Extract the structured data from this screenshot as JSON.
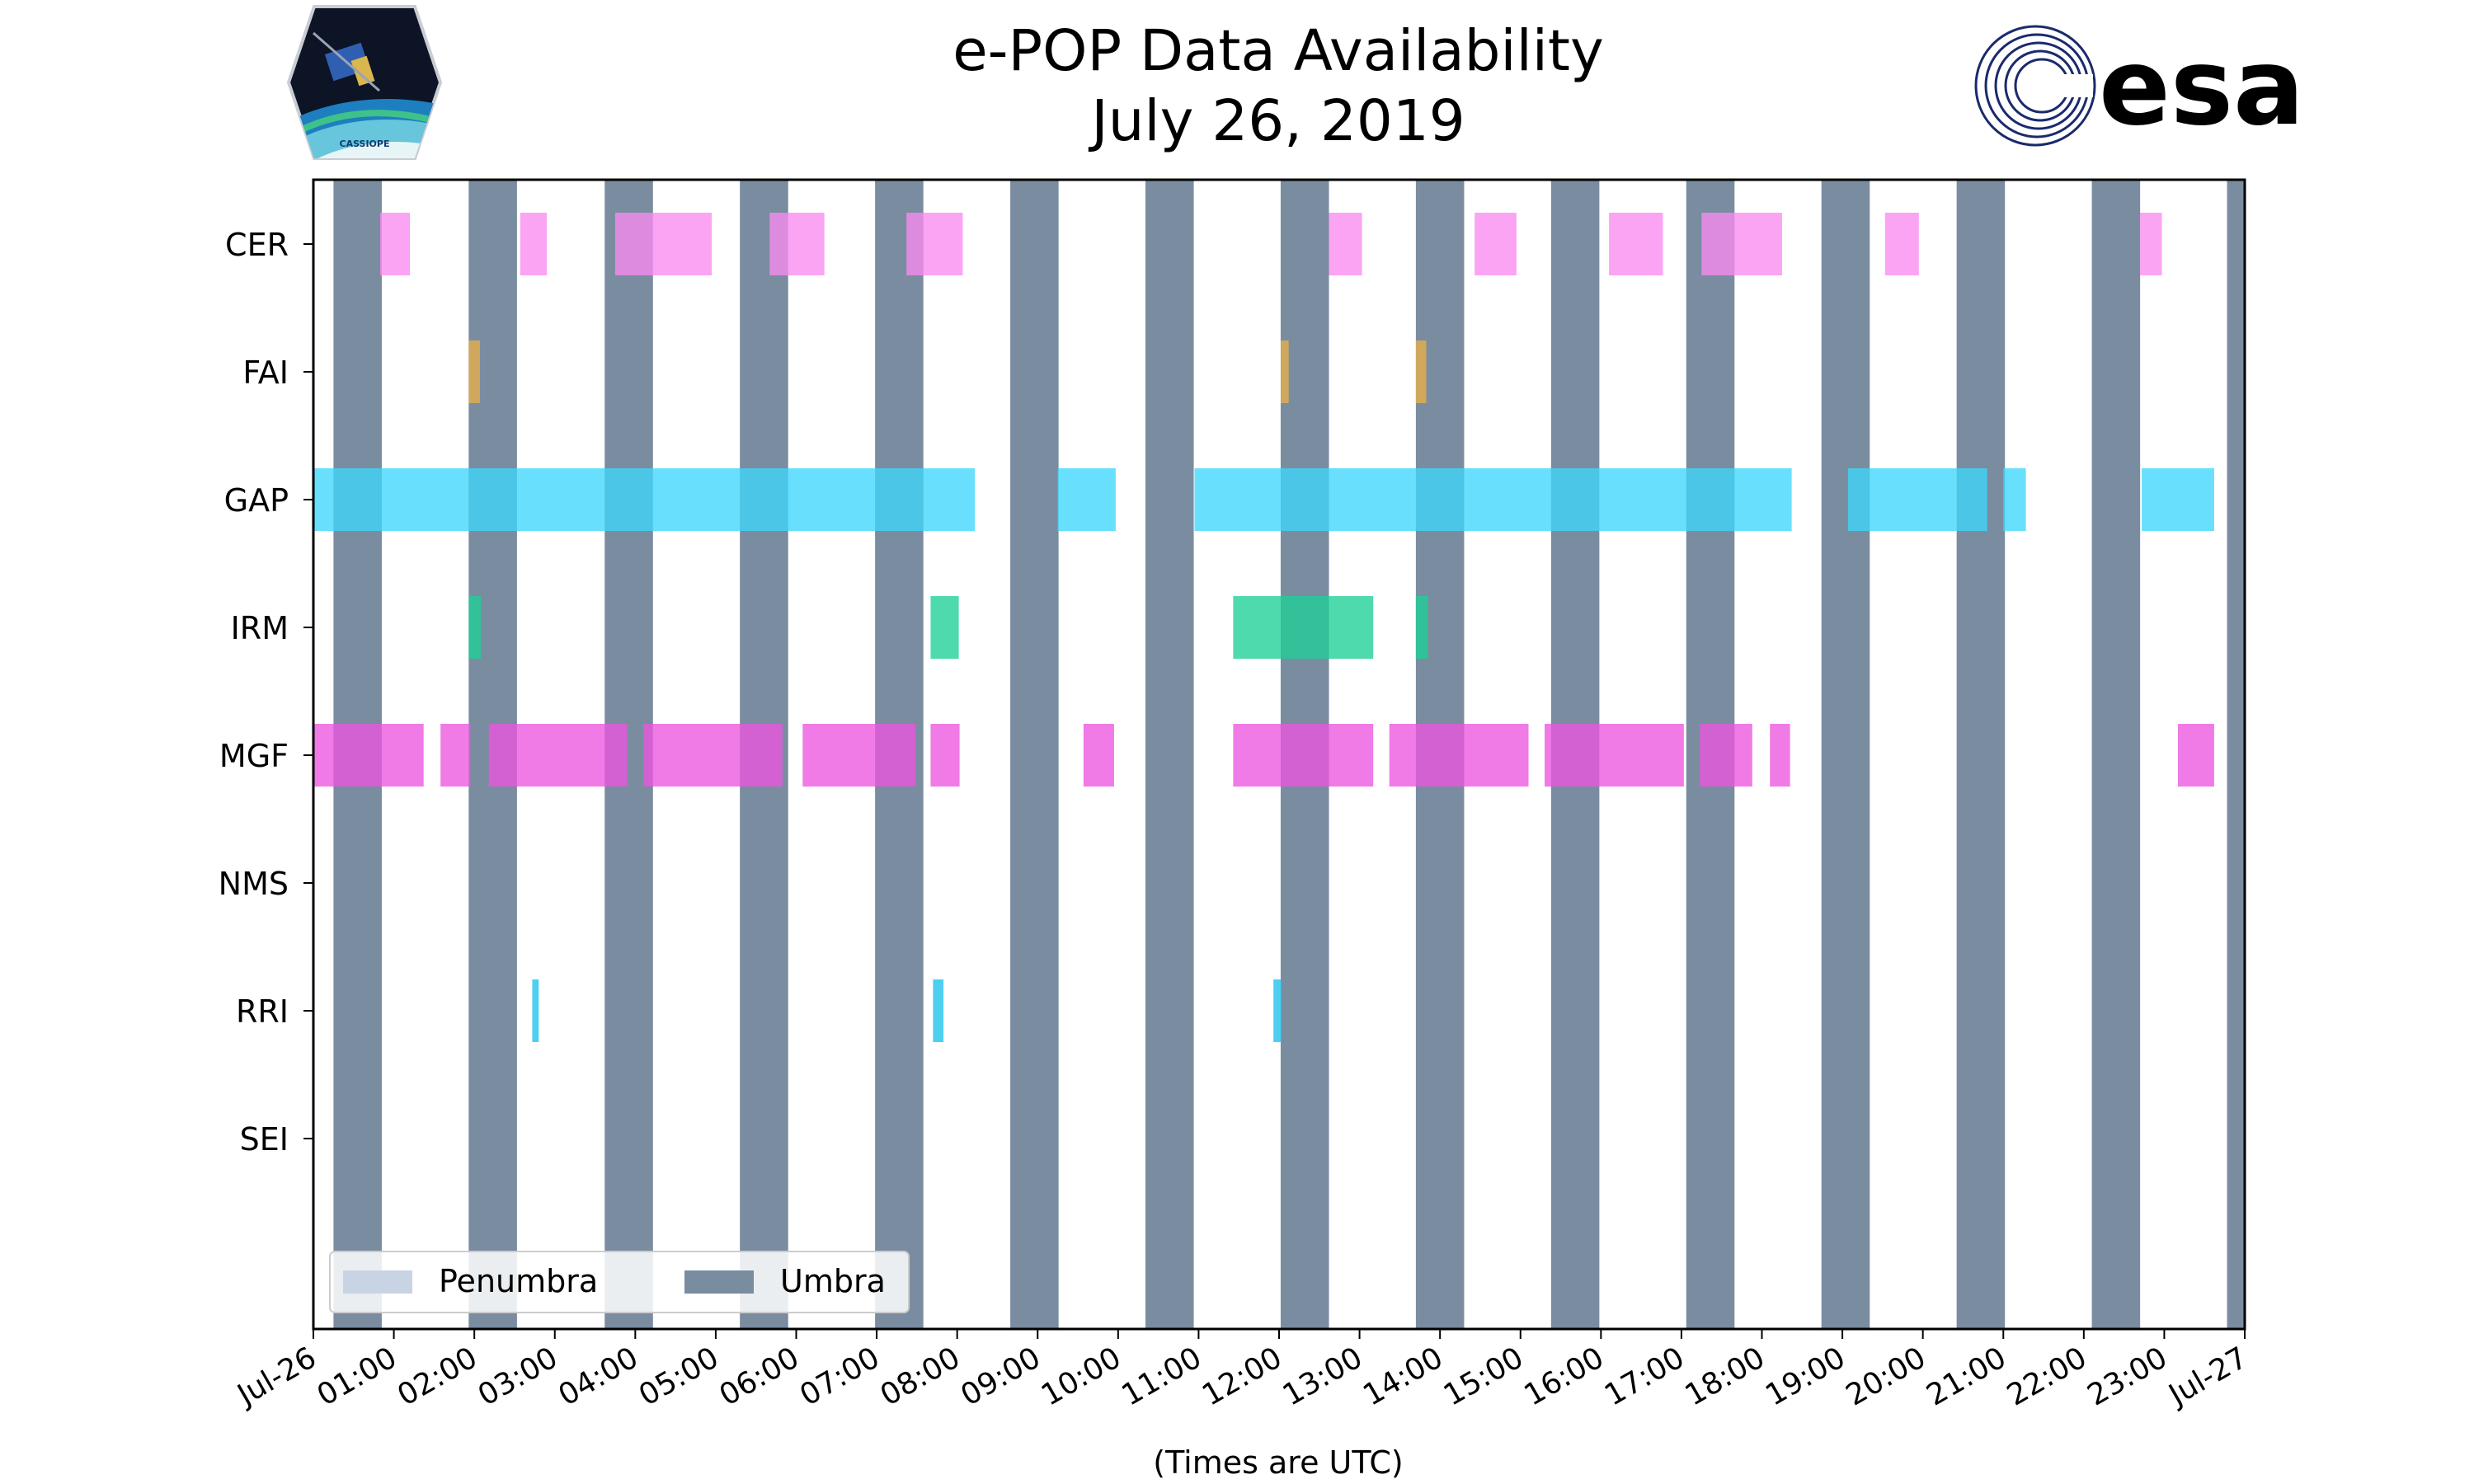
{
  "chart_data": {
    "type": "timeline",
    "title_line1": "e-POP Data Availability",
    "title_line2": "July 26, 2019",
    "xlabel": "(Times are UTC)",
    "x_range_hours": [
      0,
      24
    ],
    "x_tick_hours": [
      0,
      1,
      2,
      3,
      4,
      5,
      6,
      7,
      8,
      9,
      10,
      11,
      12,
      13,
      14,
      15,
      16,
      17,
      18,
      19,
      20,
      21,
      22,
      23,
      24
    ],
    "x_tick_labels": [
      "Jul-26",
      "01:00",
      "02:00",
      "03:00",
      "04:00",
      "05:00",
      "06:00",
      "07:00",
      "08:00",
      "09:00",
      "10:00",
      "11:00",
      "12:00",
      "13:00",
      "14:00",
      "15:00",
      "16:00",
      "17:00",
      "18:00",
      "19:00",
      "20:00",
      "21:00",
      "22:00",
      "23:00",
      "Jul-27"
    ],
    "instruments": [
      "CER",
      "FAI",
      "GAP",
      "IRM",
      "MGF",
      "NMS",
      "RRI",
      "SEI"
    ],
    "legend": {
      "position": "lower-left",
      "items": [
        {
          "label": "Penumbra",
          "color": "#c8d4e4"
        },
        {
          "label": "Umbra",
          "color": "#7a8ca0"
        }
      ]
    },
    "umbra_intervals": [
      [
        0.25,
        0.85
      ],
      [
        1.93,
        2.53
      ],
      [
        3.62,
        4.22
      ],
      [
        5.3,
        5.9
      ],
      [
        6.98,
        7.58
      ],
      [
        8.66,
        9.26
      ],
      [
        10.34,
        10.94
      ],
      [
        12.02,
        12.62
      ],
      [
        13.7,
        14.3
      ],
      [
        15.38,
        15.98
      ],
      [
        17.06,
        17.66
      ],
      [
        18.74,
        19.34
      ],
      [
        20.42,
        21.02
      ],
      [
        22.1,
        22.7
      ],
      [
        23.78,
        24.0
      ]
    ],
    "series": [
      {
        "name": "CER",
        "color": "#f98af0",
        "intervals": [
          [
            0.83,
            1.2
          ],
          [
            2.57,
            2.9
          ],
          [
            3.75,
            4.95
          ],
          [
            5.67,
            6.35
          ],
          [
            7.37,
            8.07
          ],
          [
            12.62,
            13.03
          ],
          [
            14.43,
            14.95
          ],
          [
            16.1,
            16.77
          ],
          [
            17.25,
            18.25
          ],
          [
            19.53,
            19.95
          ],
          [
            22.7,
            22.97
          ]
        ]
      },
      {
        "name": "FAI",
        "color": "#e8b04a",
        "intervals": [
          [
            1.93,
            2.07
          ],
          [
            12.02,
            12.12
          ],
          [
            13.7,
            13.83
          ]
        ]
      },
      {
        "name": "GAP",
        "color": "#3dd6fb",
        "intervals": [
          [
            0.0,
            8.22
          ],
          [
            9.25,
            9.97
          ],
          [
            10.95,
            18.37
          ],
          [
            19.07,
            20.8
          ],
          [
            21.0,
            21.28
          ],
          [
            22.72,
            23.62
          ]
        ]
      },
      {
        "name": "IRM",
        "color": "#1dcf96",
        "intervals": [
          [
            1.93,
            2.08
          ],
          [
            7.67,
            8.02
          ],
          [
            11.43,
            13.17
          ],
          [
            13.7,
            13.85
          ]
        ]
      },
      {
        "name": "MGF",
        "color": "#ec55df",
        "intervals": [
          [
            0.0,
            1.37
          ],
          [
            1.58,
            1.95
          ],
          [
            2.18,
            3.9
          ],
          [
            4.1,
            5.83
          ],
          [
            6.08,
            7.48
          ],
          [
            7.67,
            8.03
          ],
          [
            9.57,
            9.95
          ],
          [
            11.43,
            13.17
          ],
          [
            13.37,
            15.1
          ],
          [
            15.3,
            17.03
          ],
          [
            17.23,
            17.88
          ],
          [
            18.1,
            18.35
          ],
          [
            23.17,
            23.62
          ]
        ]
      },
      {
        "name": "NMS",
        "color": "#888888",
        "intervals": []
      },
      {
        "name": "RRI",
        "color": "#1cc2ec",
        "intervals": [
          [
            2.72,
            2.8
          ],
          [
            7.7,
            7.83
          ],
          [
            11.93,
            12.03
          ]
        ]
      },
      {
        "name": "SEI",
        "color": "#888888",
        "intervals": []
      }
    ]
  },
  "logos": {
    "cassiope_text": "CASSIOPE",
    "esa_text": "esa",
    "esa_color": "#1a2a6c"
  }
}
